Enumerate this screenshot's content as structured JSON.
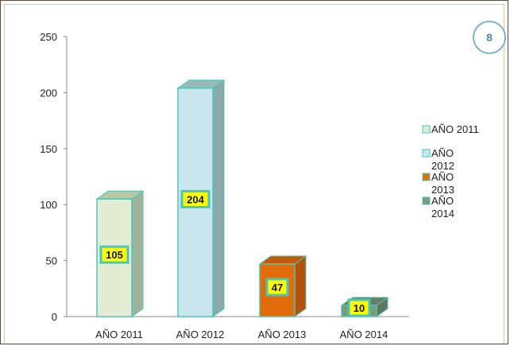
{
  "page_badge": "8",
  "chart_data": {
    "type": "bar",
    "categories": [
      "AÑO 2011",
      "AÑO 2012",
      "AÑO 2013",
      "AÑO 2014"
    ],
    "values": [
      105,
      204,
      47,
      10
    ],
    "data_labels": [
      "105",
      "204",
      "47",
      "10"
    ],
    "ylim": [
      0,
      250
    ],
    "yticks": [
      "0",
      "50",
      "100",
      "150",
      "200",
      "250"
    ],
    "grid": false,
    "legend_position": "right",
    "legend": [
      {
        "name_line1": "AÑO 2011",
        "name_line2": ""
      },
      {
        "name_line1": "AÑO",
        "name_line2": "2012"
      },
      {
        "name_line1": "AÑO",
        "name_line2": "2013"
      },
      {
        "name_line1": "AÑO",
        "name_line2": "2014"
      }
    ],
    "colors": {
      "front": [
        "#e4ebd3",
        "#c9e5ee",
        "#e36c0a",
        "#7f9a78"
      ],
      "top": [
        "#b7c7a4",
        "#9ab9b6",
        "#c0580a",
        "#677f60"
      ],
      "side": [
        "#9fb39c",
        "#89aaa8",
        "#b4520c",
        "#5f7658"
      ],
      "edge": "#49c6b8",
      "label_bg": "#ffff00",
      "label_border": "#49c6b8"
    }
  }
}
